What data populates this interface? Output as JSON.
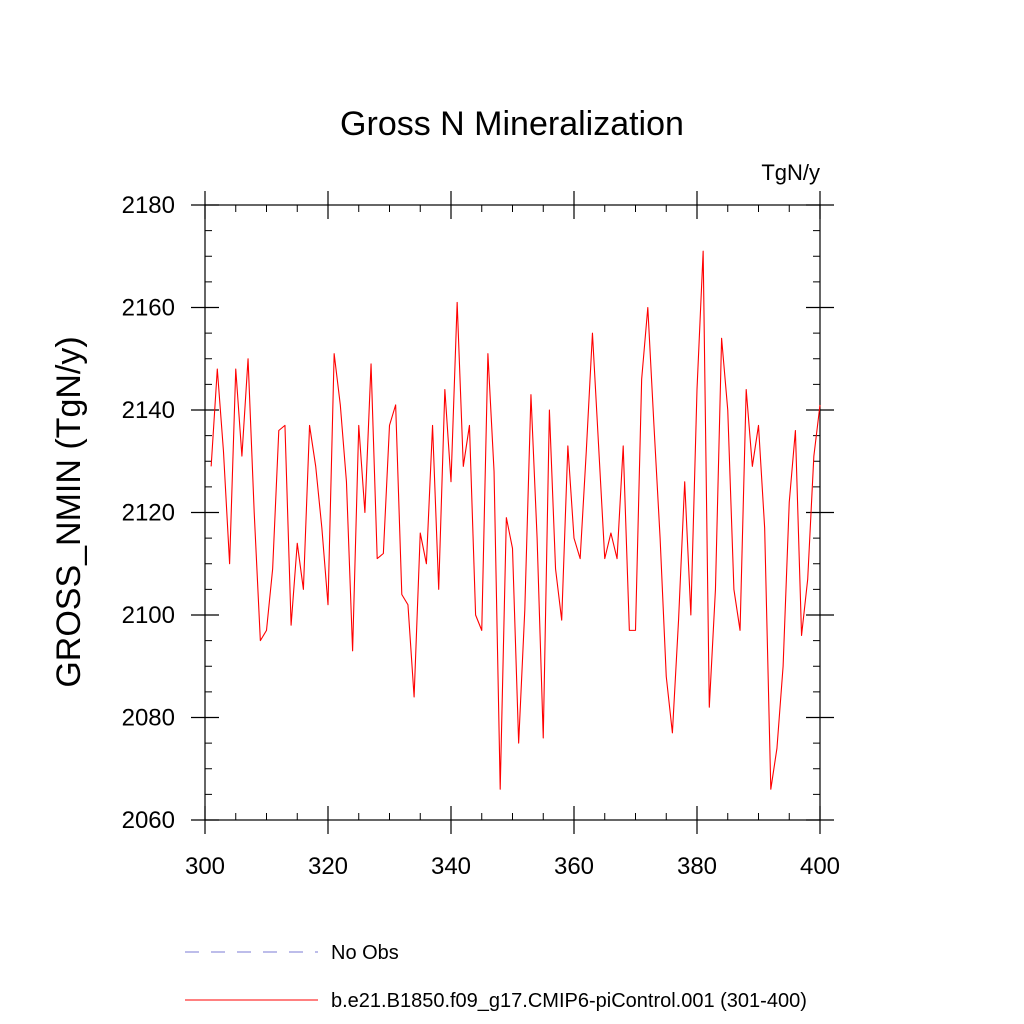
{
  "chart_data": {
    "type": "line",
    "title": "Gross N Mineralization",
    "units_label": "TgN/y",
    "ylabel": "GROSS_NMIN  (TgN/y)",
    "xlabel": "",
    "xlim": [
      300,
      400
    ],
    "ylim": [
      2060,
      2180
    ],
    "x_ticks": [
      300,
      320,
      340,
      360,
      380,
      400
    ],
    "y_ticks": [
      2060,
      2080,
      2100,
      2120,
      2140,
      2160,
      2180
    ],
    "x_minor_step": 5,
    "y_minor_step": 5,
    "grid": false,
    "legend_position": "bottom",
    "series": [
      {
        "name": "b.e21.B1850.f09_g17.CMIP6-piControl.001 (301-400)",
        "color": "#ff0000",
        "style": "solid",
        "x": [
          301,
          302,
          303,
          304,
          305,
          306,
          307,
          308,
          309,
          310,
          311,
          312,
          313,
          314,
          315,
          316,
          317,
          318,
          319,
          320,
          321,
          322,
          323,
          324,
          325,
          326,
          327,
          328,
          329,
          330,
          331,
          332,
          333,
          334,
          335,
          336,
          337,
          338,
          339,
          340,
          341,
          342,
          343,
          344,
          345,
          346,
          347,
          348,
          349,
          350,
          351,
          352,
          353,
          354,
          355,
          356,
          357,
          358,
          359,
          360,
          361,
          362,
          363,
          364,
          365,
          366,
          367,
          368,
          369,
          370,
          371,
          372,
          373,
          374,
          375,
          376,
          377,
          378,
          379,
          380,
          381,
          382,
          383,
          384,
          385,
          386,
          387,
          388,
          389,
          390,
          391,
          392,
          393,
          394,
          395,
          396,
          397,
          398,
          399,
          400
        ],
        "values": [
          2129,
          2148,
          2132,
          2110,
          2148,
          2131,
          2150,
          2120,
          2095,
          2097,
          2109,
          2136,
          2137,
          2098,
          2114,
          2105,
          2137,
          2129,
          2117,
          2102,
          2151,
          2141,
          2126,
          2093,
          2137,
          2120,
          2149,
          2111,
          2112,
          2137,
          2141,
          2104,
          2102,
          2084,
          2116,
          2110,
          2137,
          2105,
          2144,
          2126,
          2161,
          2129,
          2137,
          2100,
          2097,
          2151,
          2128,
          2066,
          2119,
          2113,
          2075,
          2101,
          2143,
          2115,
          2076,
          2140,
          2109,
          2099,
          2133,
          2115,
          2111,
          2132,
          2155,
          2133,
          2111,
          2116,
          2111,
          2133,
          2097,
          2097,
          2146,
          2160,
          2137,
          2115,
          2088,
          2077,
          2099,
          2126,
          2100,
          2144,
          2171,
          2082,
          2105,
          2154,
          2140,
          2105,
          2097,
          2144,
          2129,
          2137,
          2117,
          2066,
          2074,
          2090,
          2122,
          2136,
          2096,
          2107,
          2131,
          2141
        ]
      },
      {
        "name": "No Obs",
        "color": "#7b7bd6",
        "style": "dashed",
        "x": [],
        "values": []
      }
    ]
  }
}
